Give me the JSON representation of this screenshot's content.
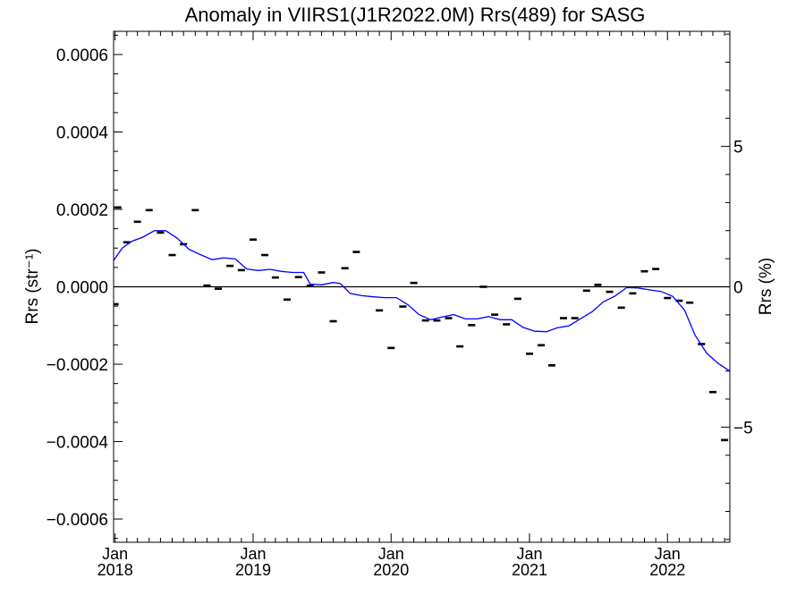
{
  "chart_data": {
    "type": "line",
    "title": "Anomaly in VIIRS1(J1R2022.0M) Rrs(489) for SASG",
    "ylabel": "Rrs (str⁻¹)",
    "y2label": "Rrs (%)",
    "xlabel": "",
    "xlim": [
      "2017-12-28",
      "2022-06-15"
    ],
    "ylim": [
      -0.00066,
      0.00066
    ],
    "y2lim": [
      -9.1,
      9.1
    ],
    "yticks": [
      {
        "value": 0.0006,
        "label": "0.0006"
      },
      {
        "value": 0.0004,
        "label": "0.0004"
      },
      {
        "value": 0.0002,
        "label": "0.0002"
      },
      {
        "value": 0.0,
        "label": "0.0000"
      },
      {
        "value": -0.0002,
        "label": "−0.0002"
      },
      {
        "value": -0.0004,
        "label": "−0.0004"
      },
      {
        "value": -0.0006,
        "label": "−0.0006"
      }
    ],
    "y2ticks": [
      {
        "value": 5,
        "label": "5"
      },
      {
        "value": 0,
        "label": "0"
      },
      {
        "value": -5,
        "label": "−5"
      }
    ],
    "xticks": [
      {
        "date": "2018-01-01",
        "month": "Jan",
        "year": "2018"
      },
      {
        "date": "2019-01-01",
        "month": "Jan",
        "year": "2019"
      },
      {
        "date": "2020-01-01",
        "month": "Jan",
        "year": "2020"
      },
      {
        "date": "2021-01-01",
        "month": "Jan",
        "year": "2021"
      },
      {
        "date": "2022-01-01",
        "month": "Jan",
        "year": "2022"
      }
    ],
    "grid": false,
    "zero_line": true,
    "series": [
      {
        "kind": "dash-markers",
        "color": "#000000",
        "points": [
          [
            "2018-01-01",
            -4.5e-05
          ],
          [
            "2018-01-08",
            0.000205
          ],
          [
            "2018-02-01",
            0.000115
          ],
          [
            "2018-03-01",
            0.000168
          ],
          [
            "2018-04-01",
            0.000198
          ],
          [
            "2018-05-01",
            0.00014
          ],
          [
            "2018-06-01",
            8.2e-05
          ],
          [
            "2018-07-01",
            0.00011
          ],
          [
            "2018-08-01",
            0.000198
          ],
          [
            "2018-09-01",
            3e-06
          ],
          [
            "2018-10-01",
            -5e-06
          ],
          [
            "2018-11-01",
            5.4e-05
          ],
          [
            "2018-12-01",
            4.3e-05
          ],
          [
            "2019-01-01",
            0.000122
          ],
          [
            "2019-02-01",
            8.2e-05
          ],
          [
            "2019-03-01",
            2.4e-05
          ],
          [
            "2019-04-01",
            -3.3e-05
          ],
          [
            "2019-05-01",
            2.5e-05
          ],
          [
            "2019-06-01",
            3e-06
          ],
          [
            "2019-07-01",
            3.7e-05
          ],
          [
            "2019-08-01",
            -8.9e-05
          ],
          [
            "2019-09-01",
            4.8e-05
          ],
          [
            "2019-10-01",
            9e-05
          ],
          [
            "2019-12-01",
            -6.1e-05
          ],
          [
            "2020-01-01",
            -0.000158
          ],
          [
            "2020-02-01",
            -5.1e-05
          ],
          [
            "2020-03-01",
            1e-05
          ],
          [
            "2020-04-01",
            -8.7e-05
          ],
          [
            "2020-05-01",
            -8.7e-05
          ],
          [
            "2020-06-01",
            -8.1e-05
          ],
          [
            "2020-07-01",
            -0.000154
          ],
          [
            "2020-08-01",
            -9.9e-05
          ],
          [
            "2020-09-01",
            0.0
          ],
          [
            "2020-10-01",
            -7.2e-05
          ],
          [
            "2020-11-01",
            -9.7e-05
          ],
          [
            "2020-12-01",
            -3.1e-05
          ],
          [
            "2021-01-01",
            -0.000173
          ],
          [
            "2021-02-01",
            -0.000151
          ],
          [
            "2021-03-01",
            -0.000203
          ],
          [
            "2021-04-01",
            -8.1e-05
          ],
          [
            "2021-05-01",
            -8.1e-05
          ],
          [
            "2021-06-01",
            -1e-05
          ],
          [
            "2021-07-01",
            5e-06
          ],
          [
            "2021-08-01",
            -1.3e-05
          ],
          [
            "2021-09-01",
            -5.4e-05
          ],
          [
            "2021-10-01",
            -1.7e-05
          ],
          [
            "2021-11-01",
            4e-05
          ],
          [
            "2021-12-01",
            4.6e-05
          ],
          [
            "2022-01-01",
            -2.9e-05
          ],
          [
            "2022-02-01",
            -3.6e-05
          ],
          [
            "2022-03-01",
            -4.1e-05
          ],
          [
            "2022-04-01",
            -0.000148
          ],
          [
            "2022-05-01",
            -0.000272
          ],
          [
            "2022-06-01",
            -0.000396
          ]
        ]
      },
      {
        "kind": "smoothed-line",
        "color": "#0000ff",
        "points": [
          [
            "2017-12-28",
            6.8e-05
          ],
          [
            "2018-01-20",
            0.0001
          ],
          [
            "2018-02-15",
            0.000118
          ],
          [
            "2018-03-15",
            0.000128
          ],
          [
            "2018-04-15",
            0.000145
          ],
          [
            "2018-05-15",
            0.000145
          ],
          [
            "2018-06-15",
            0.000125
          ],
          [
            "2018-07-15",
            9.7e-05
          ],
          [
            "2018-08-15",
            8.3e-05
          ],
          [
            "2018-09-15",
            7e-05
          ],
          [
            "2018-10-15",
            7.5e-05
          ],
          [
            "2018-11-15",
            7.2e-05
          ],
          [
            "2018-12-15",
            4.6e-05
          ],
          [
            "2019-01-15",
            4.2e-05
          ],
          [
            "2019-02-15",
            4.5e-05
          ],
          [
            "2019-03-15",
            4e-05
          ],
          [
            "2019-04-15",
            3.7e-05
          ],
          [
            "2019-05-15",
            3.7e-05
          ],
          [
            "2019-06-01",
            7e-06
          ],
          [
            "2019-07-01",
            5e-06
          ],
          [
            "2019-08-01",
            1.1e-05
          ],
          [
            "2019-08-20",
            8e-06
          ],
          [
            "2019-09-15",
            -1.7e-05
          ],
          [
            "2019-10-15",
            -2.3e-05
          ],
          [
            "2019-11-15",
            -2.6e-05
          ],
          [
            "2019-12-15",
            -2.8e-05
          ],
          [
            "2020-01-15",
            -2.8e-05
          ],
          [
            "2020-02-15",
            -4.7e-05
          ],
          [
            "2020-03-15",
            -7.2e-05
          ],
          [
            "2020-04-15",
            -8.5e-05
          ],
          [
            "2020-05-15",
            -7.8e-05
          ],
          [
            "2020-06-15",
            -7.2e-05
          ],
          [
            "2020-07-15",
            -8.3e-05
          ],
          [
            "2020-08-15",
            -8.3e-05
          ],
          [
            "2020-09-15",
            -7.7e-05
          ],
          [
            "2020-10-15",
            -8.5e-05
          ],
          [
            "2020-11-15",
            -8.5e-05
          ],
          [
            "2020-12-15",
            -0.000105
          ],
          [
            "2021-01-15",
            -0.000115
          ],
          [
            "2021-02-15",
            -0.000116
          ],
          [
            "2021-03-15",
            -0.000106
          ],
          [
            "2021-04-15",
            -0.000101
          ],
          [
            "2021-05-15",
            -8.3e-05
          ],
          [
            "2021-06-15",
            -6.5e-05
          ],
          [
            "2021-07-15",
            -3.9e-05
          ],
          [
            "2021-08-15",
            -2.4e-05
          ],
          [
            "2021-09-15",
            -2e-06
          ],
          [
            "2021-10-15",
            -3e-06
          ],
          [
            "2021-11-15",
            -8e-06
          ],
          [
            "2021-12-15",
            -1.2e-05
          ],
          [
            "2022-01-15",
            -2.5e-05
          ],
          [
            "2022-02-15",
            -6e-05
          ],
          [
            "2022-03-15",
            -0.000125
          ],
          [
            "2022-04-15",
            -0.000172
          ],
          [
            "2022-05-15",
            -0.000198
          ],
          [
            "2022-06-15",
            -0.000218
          ]
        ]
      }
    ]
  }
}
